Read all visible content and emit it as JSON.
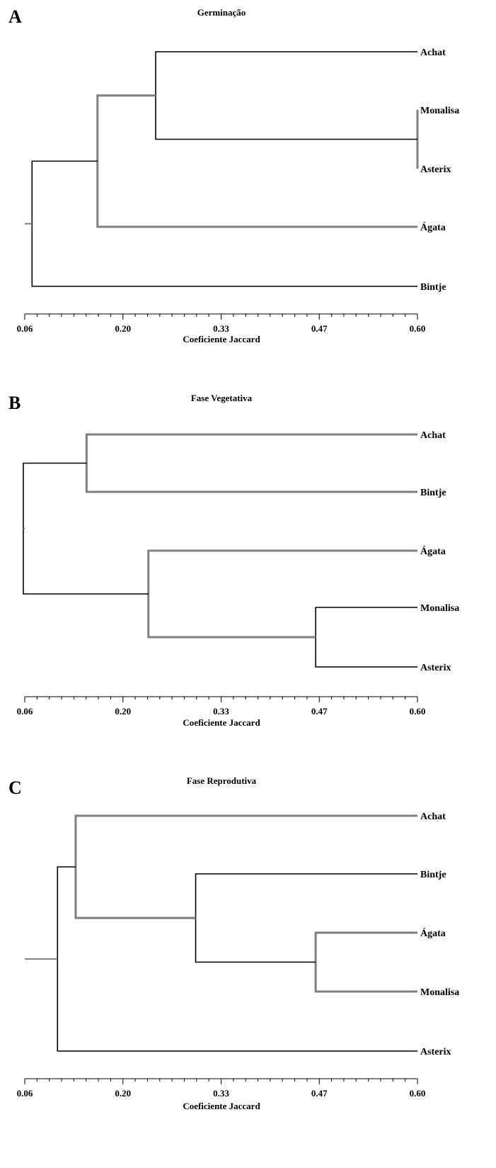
{
  "chart_data": [
    {
      "type": "dendrogram",
      "panel": "A",
      "title": "Germinação",
      "xlabel": "Coeficiente Jaccard",
      "xlim": [
        0.06,
        0.6
      ],
      "ticks": [
        "0.06",
        "0.20",
        "0.33",
        "0.47",
        "0.60"
      ],
      "leaves": [
        "Achat",
        "Monalisa",
        "Asterix",
        "Ágata",
        "Bintje"
      ],
      "merges": [
        {
          "a": "Monalisa",
          "b": "Asterix",
          "height": 0.6
        },
        {
          "a": "Achat",
          "b": 0,
          "height": 0.24
        },
        {
          "a": 1,
          "b": "Ágata",
          "height": 0.16
        },
        {
          "a": 2,
          "b": "Bintje",
          "height": 0.07
        }
      ],
      "colors": {
        "gray": "#7f7f7f",
        "black": "#000000"
      }
    },
    {
      "type": "dendrogram",
      "panel": "B",
      "title": "Fase Vegetativa",
      "xlabel": "Coeficiente Jaccard",
      "xlim": [
        0.06,
        0.6
      ],
      "ticks": [
        "0.06",
        "0.20",
        "0.33",
        "0.47",
        "0.60"
      ],
      "leaves": [
        "Achat",
        "Bintje",
        "Ágata",
        "Monalisa",
        "Asterix"
      ],
      "merges": [
        {
          "a": "Achat",
          "b": "Bintje",
          "height": 0.145
        },
        {
          "a": "Monalisa",
          "b": "Asterix",
          "height": 0.46
        },
        {
          "a": "Ágata",
          "b": 1,
          "height": 0.23
        },
        {
          "a": 0,
          "b": 2,
          "height": 0.058
        }
      ],
      "colors": {
        "gray": "#7f7f7f",
        "black": "#000000"
      }
    },
    {
      "type": "dendrogram",
      "panel": "C",
      "title": "Fase Reprodutiva",
      "xlabel": "Coeficiente Jaccard",
      "xlim": [
        0.06,
        0.6
      ],
      "ticks": [
        "0.06",
        "0.20",
        "0.33",
        "0.47",
        "0.60"
      ],
      "leaves": [
        "Achat",
        "Bintje",
        "Ágata",
        "Monalisa",
        "Asterix"
      ],
      "merges": [
        {
          "a": "Ágata",
          "b": "Monalisa",
          "height": 0.46
        },
        {
          "a": "Bintje",
          "b": 0,
          "height": 0.295
        },
        {
          "a": "Achat",
          "b": 1,
          "height": 0.13
        },
        {
          "a": 2,
          "b": "Asterix",
          "height": 0.105
        }
      ],
      "colors": {
        "gray": "#7f7f7f",
        "black": "#000000"
      }
    }
  ]
}
